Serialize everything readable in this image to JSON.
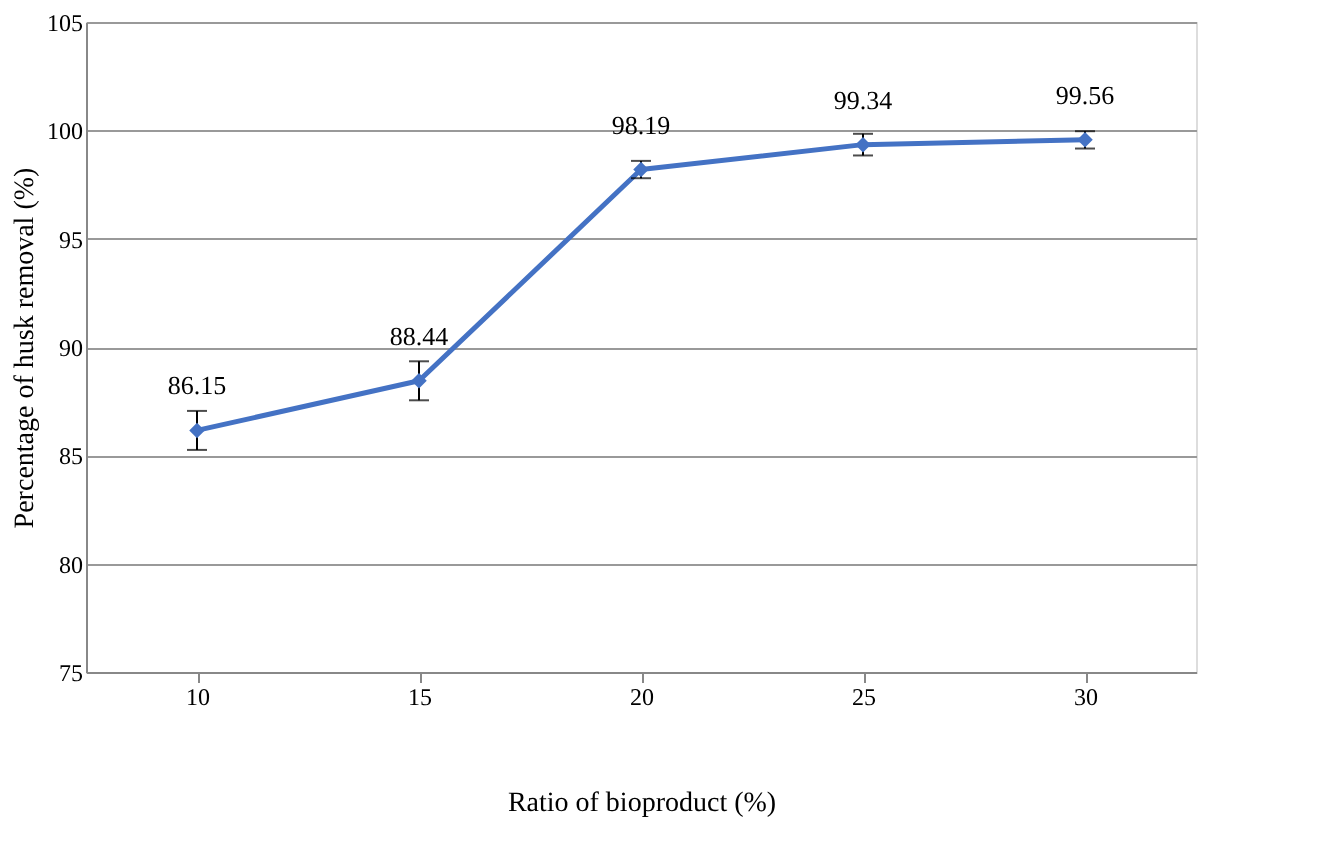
{
  "chart_data": {
    "type": "line",
    "xlabel": "Ratio of bioproduct (%)",
    "ylabel": "Percentage of husk removal (%)",
    "categories": [
      "10",
      "15",
      "20",
      "25",
      "30"
    ],
    "series": [
      {
        "color": "#4472c4",
        "values": [
          86.15,
          88.44,
          98.19,
          99.34,
          99.56
        ],
        "errors": [
          0.9,
          0.9,
          0.4,
          0.5,
          0.4
        ]
      }
    ],
    "ylim": [
      75,
      105
    ],
    "yticks": [
      75,
      80,
      85,
      90,
      95,
      100,
      105
    ],
    "grid": "y",
    "marker": "diamond",
    "data_labels": true
  }
}
